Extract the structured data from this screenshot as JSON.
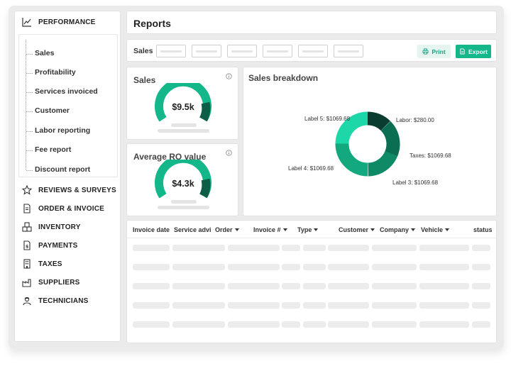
{
  "sidebar": {
    "performance": {
      "label": "PERFORMANCE",
      "icon": "chart-line-icon"
    },
    "sub_items": [
      {
        "label": "Sales"
      },
      {
        "label": "Profitability"
      },
      {
        "label": "Services invoiced"
      },
      {
        "label": "Customer"
      },
      {
        "label": "Labor reporting"
      },
      {
        "label": "Fee report"
      },
      {
        "label": "Discount report"
      }
    ],
    "sections": [
      {
        "label": "REVIEWS & SURVEYS",
        "icon": "star-icon"
      },
      {
        "label": "ORDER & INVOICE",
        "icon": "document-icon"
      },
      {
        "label": "INVENTORY",
        "icon": "boxes-icon"
      },
      {
        "label": "PAYMENTS",
        "icon": "payment-doc-icon"
      },
      {
        "label": "TAXES",
        "icon": "building-icon"
      },
      {
        "label": "SUPPLIERS",
        "icon": "factory-icon"
      },
      {
        "label": "TECHNICIANS",
        "icon": "technician-icon"
      }
    ]
  },
  "header": {
    "title": "Reports"
  },
  "filters": {
    "label": "Sales",
    "print_label": "Print",
    "export_label": "Export"
  },
  "kpis": {
    "sales": {
      "title": "Sales",
      "value": "$9.5k"
    },
    "ro": {
      "title": "Average RO value",
      "value": "$4.3k"
    }
  },
  "breakdown": {
    "title": "Sales breakdown",
    "labels": {
      "label5": "Label 5: $1069.68",
      "labor": "Labor: $280.00",
      "taxes": "Taxes: $1069.68",
      "label4": "Label 4: $1069.68",
      "label3": "Label 3: $1069.68"
    }
  },
  "table": {
    "headers": [
      {
        "label": "Invoice date"
      },
      {
        "label": "Service advi"
      },
      {
        "label": "Order"
      },
      {
        "label": "Invoice #"
      },
      {
        "label": "Type"
      },
      {
        "label": "Customer"
      },
      {
        "label": "Company"
      },
      {
        "label": "Vehicle"
      },
      {
        "label": "status"
      }
    ]
  },
  "colors": {
    "accent": "#14b78a",
    "gauge_main": "#14b78a",
    "gauge_dark": "#0d5e47",
    "donut": [
      "#1ed7a8",
      "#14a87e",
      "#0f8a66",
      "#0b6e52",
      "#0a3d30"
    ]
  }
}
